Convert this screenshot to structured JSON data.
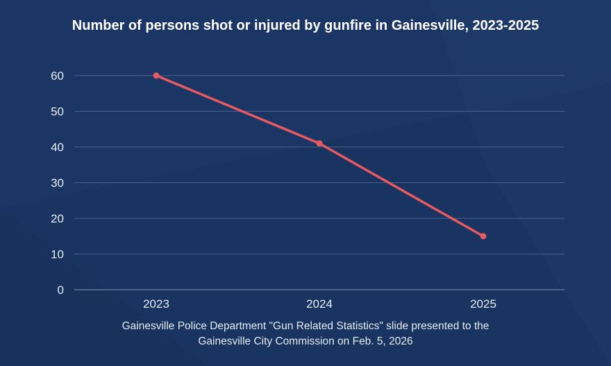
{
  "chart_data": {
    "type": "line",
    "title": "Number of persons shot or injured by gunfire in Gainesville, 2023-2025",
    "categories": [
      "2023",
      "2024",
      "2025"
    ],
    "series": [
      {
        "values": [
          60,
          41,
          15
        ],
        "color": "#e85a5f"
      }
    ],
    "xlabel": "",
    "ylabel": "",
    "ylim": [
      0,
      60
    ],
    "yticks": [
      0,
      10,
      20,
      30,
      40,
      50,
      60
    ],
    "grid": true,
    "background_color": "#1a3461"
  },
  "source_lines": [
    "Gainesville Police Department \"Gun Related Statistics\" slide presented to the",
    "Gainesville City Commission on Feb. 5, 2026"
  ]
}
